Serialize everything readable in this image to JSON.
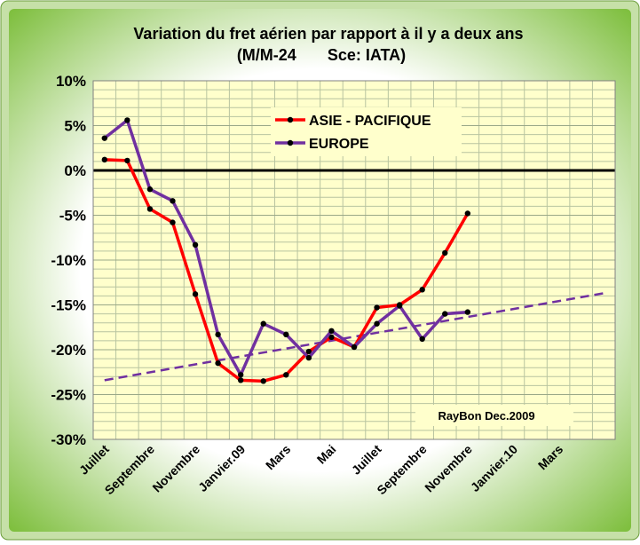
{
  "chart_data": {
    "type": "line",
    "title": "Variation du fret aérien  par rapport à il y a deux ans",
    "subtitle": "(M/M-24       Sce: IATA)",
    "annotation": "RayBon Dec.2009",
    "categories": [
      "Juillet",
      null,
      "Septembre",
      null,
      "Novembre",
      null,
      "Janvier.09",
      null,
      "Mars",
      null,
      "Mai",
      null,
      "Juillet",
      null,
      "Septembre",
      null,
      "Novembre",
      null,
      "Janvier.10",
      null,
      "Mars",
      null,
      null
    ],
    "series": [
      {
        "name": "ASIE - PACIFIQUE",
        "color": "#ff0000",
        "values": [
          1.2,
          1.1,
          -4.3,
          -5.8,
          -13.8,
          -21.5,
          -23.4,
          -23.5,
          -22.8,
          -20.2,
          -18.6,
          -19.7,
          -15.3,
          -15.0,
          -13.3,
          -9.2,
          -4.8,
          null,
          null,
          null,
          null,
          null,
          null
        ]
      },
      {
        "name": "EUROPE",
        "color": "#7030a0",
        "values": [
          3.6,
          5.6,
          -2.1,
          -3.4,
          -8.3,
          -18.3,
          -22.8,
          -17.1,
          -18.3,
          -20.9,
          -17.9,
          -19.7,
          -17.1,
          -15.1,
          -18.8,
          -16.0,
          -15.8,
          null,
          null,
          null,
          null,
          null,
          null
        ]
      }
    ],
    "trendline": {
      "color": "#7030a0",
      "values": [
        -23.4,
        -13.7
      ]
    },
    "ylim": [
      -30,
      10
    ],
    "yticks": [
      {
        "value": 10,
        "label": "10%"
      },
      {
        "value": 5,
        "label": "5%"
      },
      {
        "value": 0,
        "label": "0%"
      },
      {
        "value": -5,
        "label": "-5%"
      },
      {
        "value": -10,
        "label": "-10%"
      },
      {
        "value": -15,
        "label": "-15%"
      },
      {
        "value": -20,
        "label": "-20%"
      },
      {
        "value": -25,
        "label": "-25%"
      },
      {
        "value": -30,
        "label": "-30%"
      }
    ],
    "minor_grid_step": 1,
    "grid": true
  }
}
